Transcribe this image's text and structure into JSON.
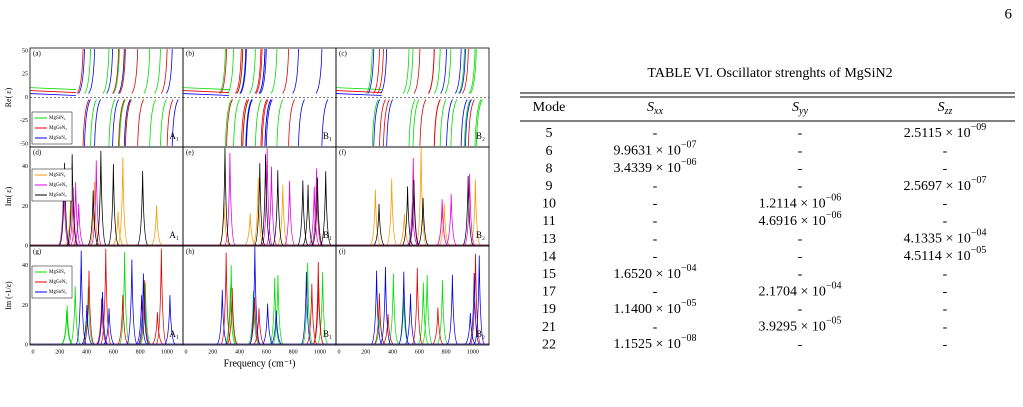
{
  "page_number": "6",
  "figure": {
    "y_axis_labels": [
      "Re( ε)",
      "Im( ε)",
      "Im (-1/ε)"
    ],
    "x_axis_label": "Frequency (cm⁻¹)",
    "panels": [
      {
        "label": "(a)",
        "symmetry": "A₁"
      },
      {
        "label": "(b)",
        "symmetry": "B₁"
      },
      {
        "label": "(c)",
        "symmetry": "B₂"
      },
      {
        "label": "(d)",
        "symmetry": "A₁"
      },
      {
        "label": "(e)",
        "symmetry": "B₁"
      },
      {
        "label": "(f)",
        "symmetry": "B₂"
      },
      {
        "label": "(g)",
        "symmetry": "A₁"
      },
      {
        "label": "(h)",
        "symmetry": "B₁"
      },
      {
        "label": "(i)",
        "symmetry": "B₂"
      }
    ],
    "y_ticks": [
      [
        "50",
        "25",
        "0",
        "-25",
        "-50"
      ],
      [
        "40",
        "20",
        "0"
      ],
      [
        "40",
        "20",
        "0"
      ]
    ],
    "x_ticks": [
      "0",
      "200",
      "400",
      "600",
      "800",
      "1000"
    ],
    "legends": [
      [
        "MgSiN₂",
        "MgGeN₂",
        "MgSnN₂"
      ],
      [
        "MgSiN₂",
        "MgGeN₂",
        "MgSnN₂"
      ],
      [
        "MgSiN₂",
        "MgGeN₂",
        "MgSnN₂"
      ]
    ]
  },
  "table": {
    "caption": "TABLE VI. Oscillator strenghts of MgSiN2",
    "header": [
      "Mode",
      {
        "base": "S",
        "sub": "xx"
      },
      {
        "base": "S",
        "sub": "yy"
      },
      {
        "base": "S",
        "sub": "zz"
      }
    ],
    "rows": [
      [
        "5",
        "-",
        "-",
        {
          "base": "2.5115 × 10",
          "exp": "−09"
        }
      ],
      [
        "6",
        {
          "base": "9.9631 × 10",
          "exp": "−07"
        },
        "-",
        "-"
      ],
      [
        "8",
        {
          "base": "3.4339 × 10",
          "exp": "−06"
        },
        "-",
        "-"
      ],
      [
        "9",
        "-",
        "-",
        {
          "base": "2.5697 × 10",
          "exp": "−07"
        }
      ],
      [
        "10",
        "-",
        {
          "base": "1.2114 × 10",
          "exp": "−06"
        },
        "-"
      ],
      [
        "11",
        "-",
        {
          "base": "4.6916 × 10",
          "exp": "−06"
        },
        "-"
      ],
      [
        "13",
        "-",
        "-",
        {
          "base": "4.1335 × 10",
          "exp": "−04"
        }
      ],
      [
        "14",
        "-",
        "-",
        {
          "base": "4.5114 × 10",
          "exp": "−05"
        }
      ],
      [
        "15",
        {
          "base": "1.6520 × 10",
          "exp": "−04"
        },
        "-",
        "-"
      ],
      [
        "17",
        "-",
        {
          "base": "2.1704 × 10",
          "exp": "−04"
        },
        "-"
      ],
      [
        "19",
        {
          "base": "1.1400 × 10",
          "exp": "−05"
        },
        "-",
        "-"
      ],
      [
        "21",
        "-",
        {
          "base": "3.9295 × 10",
          "exp": "−05"
        },
        "-"
      ],
      [
        "22",
        {
          "base": "1.1525 × 10",
          "exp": "−08"
        },
        "-",
        "-"
      ]
    ]
  }
}
